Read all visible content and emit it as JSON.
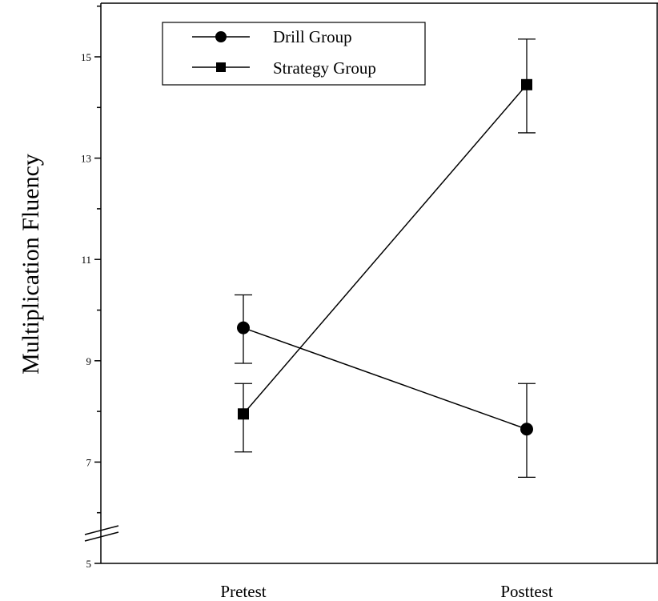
{
  "chart_data": {
    "type": "line",
    "categories": [
      "Pretest",
      "Posttest"
    ],
    "ylabel": "Multiplication Fluency",
    "xlabel": "",
    "ylim": [
      5,
      16
    ],
    "yticks": [
      5,
      7,
      9,
      11,
      13,
      15
    ],
    "axis_break": true,
    "legend_position": "top-left",
    "series": [
      {
        "name": "Drill Group",
        "marker": "circle",
        "values": [
          9.65,
          7.65
        ],
        "error_low": [
          8.95,
          6.7
        ],
        "error_high": [
          10.3,
          8.55
        ]
      },
      {
        "name": "Strategy Group",
        "marker": "square",
        "values": [
          7.95,
          14.45
        ],
        "error_low": [
          7.2,
          13.5
        ],
        "error_high": [
          8.55,
          15.35
        ]
      }
    ]
  }
}
